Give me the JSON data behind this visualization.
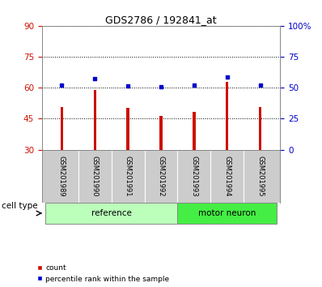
{
  "title": "GDS2786 / 192841_at",
  "samples": [
    "GSM201989",
    "GSM201990",
    "GSM201991",
    "GSM201992",
    "GSM201993",
    "GSM201994",
    "GSM201995"
  ],
  "count_values": [
    50.5,
    58.8,
    50.2,
    46.2,
    48.2,
    63.0,
    50.5
  ],
  "percentile_values": [
    52.0,
    57.5,
    51.5,
    51.0,
    52.0,
    58.8,
    52.0
  ],
  "ylim_left": [
    30,
    90
  ],
  "ylim_right": [
    0,
    100
  ],
  "yticks_left": [
    30,
    45,
    60,
    75,
    90
  ],
  "yticks_right": [
    0,
    25,
    50,
    75,
    100
  ],
  "ytick_labels_right": [
    "0",
    "25",
    "50",
    "75",
    "100%"
  ],
  "bar_color": "#cc1100",
  "percentile_color": "#0000cc",
  "bar_width": 0.08,
  "groups": [
    {
      "label": "reference",
      "indices": [
        0,
        1,
        2,
        3
      ],
      "color": "#bbffbb"
    },
    {
      "label": "motor neuron",
      "indices": [
        4,
        5,
        6
      ],
      "color": "#44ee44"
    }
  ],
  "cell_type_label": "cell type",
  "legend_items": [
    {
      "label": "count",
      "color": "#cc1100"
    },
    {
      "label": "percentile rank within the sample",
      "color": "#0000cc"
    }
  ],
  "tick_color_left": "#cc1100",
  "tick_color_right": "#0000cc",
  "label_bg_color": "#cccccc",
  "plot_bg": "#ffffff",
  "grid_color": "#000000"
}
